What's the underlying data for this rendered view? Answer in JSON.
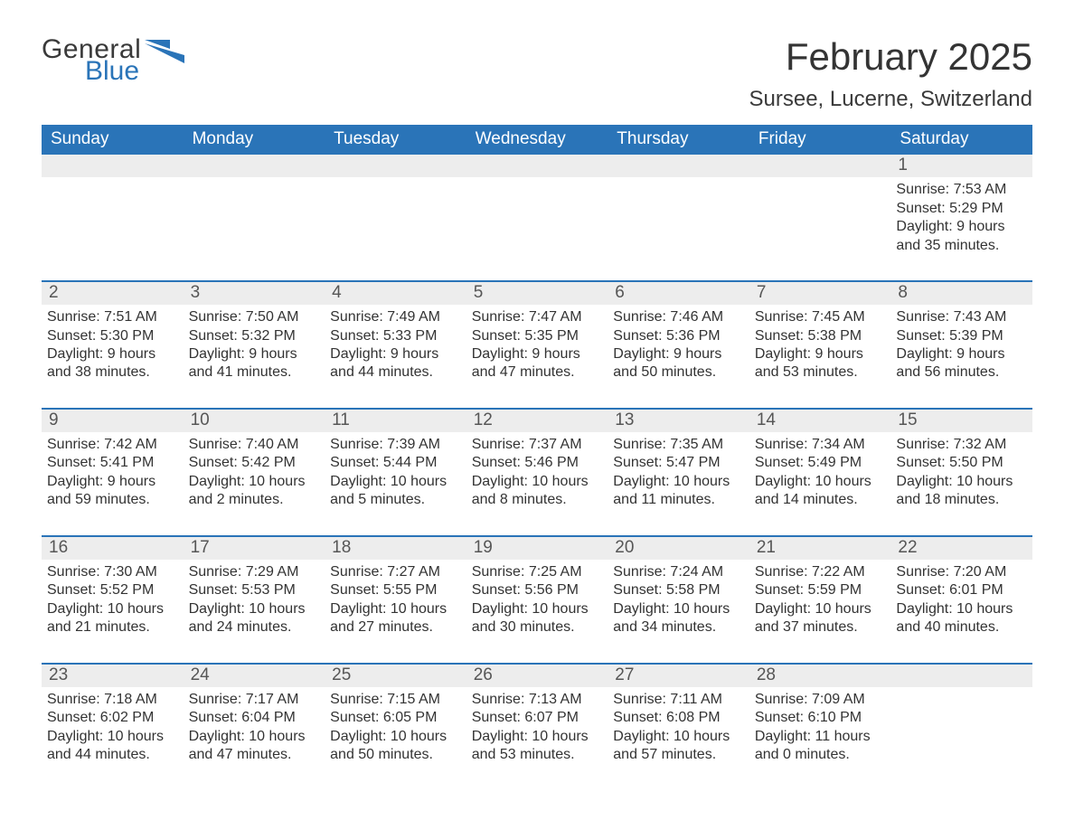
{
  "logo": {
    "word1": "General",
    "word2": "Blue",
    "icon_color": "#2a74b8"
  },
  "header": {
    "month_title": "February 2025",
    "location": "Sursee, Lucerne, Switzerland"
  },
  "colors": {
    "header_bg": "#2a74b8",
    "header_text": "#ffffff",
    "band_bg": "#ededed",
    "rule": "#2a74b8",
    "text": "#333333",
    "logo_gray": "#3a3a3a"
  },
  "day_names": [
    "Sunday",
    "Monday",
    "Tuesday",
    "Wednesday",
    "Thursday",
    "Friday",
    "Saturday"
  ],
  "weeks": [
    [
      {
        "n": "",
        "sr": "",
        "ss": "",
        "dl": ""
      },
      {
        "n": "",
        "sr": "",
        "ss": "",
        "dl": ""
      },
      {
        "n": "",
        "sr": "",
        "ss": "",
        "dl": ""
      },
      {
        "n": "",
        "sr": "",
        "ss": "",
        "dl": ""
      },
      {
        "n": "",
        "sr": "",
        "ss": "",
        "dl": ""
      },
      {
        "n": "",
        "sr": "",
        "ss": "",
        "dl": ""
      },
      {
        "n": "1",
        "sr": "Sunrise: 7:53 AM",
        "ss": "Sunset: 5:29 PM",
        "dl": "Daylight: 9 hours and 35 minutes."
      }
    ],
    [
      {
        "n": "2",
        "sr": "Sunrise: 7:51 AM",
        "ss": "Sunset: 5:30 PM",
        "dl": "Daylight: 9 hours and 38 minutes."
      },
      {
        "n": "3",
        "sr": "Sunrise: 7:50 AM",
        "ss": "Sunset: 5:32 PM",
        "dl": "Daylight: 9 hours and 41 minutes."
      },
      {
        "n": "4",
        "sr": "Sunrise: 7:49 AM",
        "ss": "Sunset: 5:33 PM",
        "dl": "Daylight: 9 hours and 44 minutes."
      },
      {
        "n": "5",
        "sr": "Sunrise: 7:47 AM",
        "ss": "Sunset: 5:35 PM",
        "dl": "Daylight: 9 hours and 47 minutes."
      },
      {
        "n": "6",
        "sr": "Sunrise: 7:46 AM",
        "ss": "Sunset: 5:36 PM",
        "dl": "Daylight: 9 hours and 50 minutes."
      },
      {
        "n": "7",
        "sr": "Sunrise: 7:45 AM",
        "ss": "Sunset: 5:38 PM",
        "dl": "Daylight: 9 hours and 53 minutes."
      },
      {
        "n": "8",
        "sr": "Sunrise: 7:43 AM",
        "ss": "Sunset: 5:39 PM",
        "dl": "Daylight: 9 hours and 56 minutes."
      }
    ],
    [
      {
        "n": "9",
        "sr": "Sunrise: 7:42 AM",
        "ss": "Sunset: 5:41 PM",
        "dl": "Daylight: 9 hours and 59 minutes."
      },
      {
        "n": "10",
        "sr": "Sunrise: 7:40 AM",
        "ss": "Sunset: 5:42 PM",
        "dl": "Daylight: 10 hours and 2 minutes."
      },
      {
        "n": "11",
        "sr": "Sunrise: 7:39 AM",
        "ss": "Sunset: 5:44 PM",
        "dl": "Daylight: 10 hours and 5 minutes."
      },
      {
        "n": "12",
        "sr": "Sunrise: 7:37 AM",
        "ss": "Sunset: 5:46 PM",
        "dl": "Daylight: 10 hours and 8 minutes."
      },
      {
        "n": "13",
        "sr": "Sunrise: 7:35 AM",
        "ss": "Sunset: 5:47 PM",
        "dl": "Daylight: 10 hours and 11 minutes."
      },
      {
        "n": "14",
        "sr": "Sunrise: 7:34 AM",
        "ss": "Sunset: 5:49 PM",
        "dl": "Daylight: 10 hours and 14 minutes."
      },
      {
        "n": "15",
        "sr": "Sunrise: 7:32 AM",
        "ss": "Sunset: 5:50 PM",
        "dl": "Daylight: 10 hours and 18 minutes."
      }
    ],
    [
      {
        "n": "16",
        "sr": "Sunrise: 7:30 AM",
        "ss": "Sunset: 5:52 PM",
        "dl": "Daylight: 10 hours and 21 minutes."
      },
      {
        "n": "17",
        "sr": "Sunrise: 7:29 AM",
        "ss": "Sunset: 5:53 PM",
        "dl": "Daylight: 10 hours and 24 minutes."
      },
      {
        "n": "18",
        "sr": "Sunrise: 7:27 AM",
        "ss": "Sunset: 5:55 PM",
        "dl": "Daylight: 10 hours and 27 minutes."
      },
      {
        "n": "19",
        "sr": "Sunrise: 7:25 AM",
        "ss": "Sunset: 5:56 PM",
        "dl": "Daylight: 10 hours and 30 minutes."
      },
      {
        "n": "20",
        "sr": "Sunrise: 7:24 AM",
        "ss": "Sunset: 5:58 PM",
        "dl": "Daylight: 10 hours and 34 minutes."
      },
      {
        "n": "21",
        "sr": "Sunrise: 7:22 AM",
        "ss": "Sunset: 5:59 PM",
        "dl": "Daylight: 10 hours and 37 minutes."
      },
      {
        "n": "22",
        "sr": "Sunrise: 7:20 AM",
        "ss": "Sunset: 6:01 PM",
        "dl": "Daylight: 10 hours and 40 minutes."
      }
    ],
    [
      {
        "n": "23",
        "sr": "Sunrise: 7:18 AM",
        "ss": "Sunset: 6:02 PM",
        "dl": "Daylight: 10 hours and 44 minutes."
      },
      {
        "n": "24",
        "sr": "Sunrise: 7:17 AM",
        "ss": "Sunset: 6:04 PM",
        "dl": "Daylight: 10 hours and 47 minutes."
      },
      {
        "n": "25",
        "sr": "Sunrise: 7:15 AM",
        "ss": "Sunset: 6:05 PM",
        "dl": "Daylight: 10 hours and 50 minutes."
      },
      {
        "n": "26",
        "sr": "Sunrise: 7:13 AM",
        "ss": "Sunset: 6:07 PM",
        "dl": "Daylight: 10 hours and 53 minutes."
      },
      {
        "n": "27",
        "sr": "Sunrise: 7:11 AM",
        "ss": "Sunset: 6:08 PM",
        "dl": "Daylight: 10 hours and 57 minutes."
      },
      {
        "n": "28",
        "sr": "Sunrise: 7:09 AM",
        "ss": "Sunset: 6:10 PM",
        "dl": "Daylight: 11 hours and 0 minutes."
      },
      {
        "n": "",
        "sr": "",
        "ss": "",
        "dl": ""
      }
    ]
  ]
}
